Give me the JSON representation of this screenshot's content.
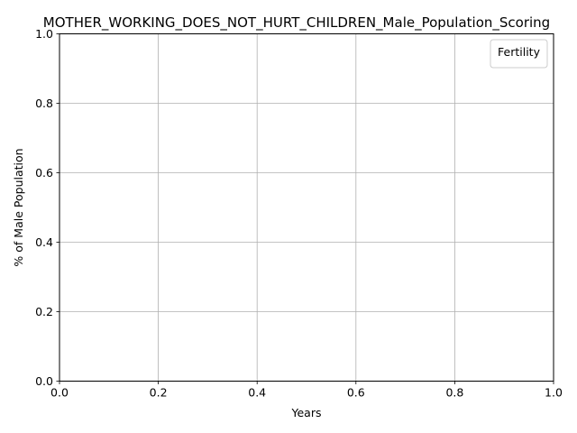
{
  "chart_data": {
    "type": "line",
    "title": "MOTHER_WORKING_DOES_NOT_HURT_CHILDREN_Male_Population_Scoring",
    "xlabel": "Years",
    "ylabel": "% of Male Population",
    "xlim": [
      0.0,
      1.0
    ],
    "ylim": [
      0.0,
      1.0
    ],
    "x_ticks": [
      0.0,
      0.2,
      0.4,
      0.6,
      0.8,
      1.0
    ],
    "y_ticks": [
      0.0,
      0.2,
      0.4,
      0.6,
      0.8,
      1.0
    ],
    "x_tick_labels": [
      "0.0",
      "0.2",
      "0.4",
      "0.6",
      "0.8",
      "1.0"
    ],
    "y_tick_labels": [
      "0.0",
      "0.2",
      "0.4",
      "0.6",
      "0.8",
      "1.0"
    ],
    "grid": true,
    "legend": {
      "title": "Fertility",
      "placement": "top-right",
      "entries": []
    },
    "series": []
  }
}
